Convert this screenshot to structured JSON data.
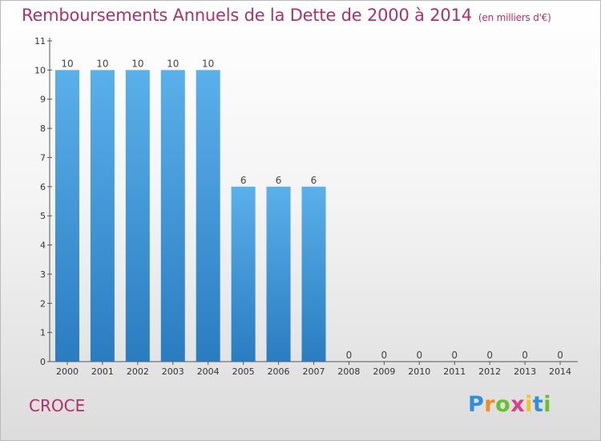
{
  "title": "Remboursements Annuels de la Dette de 2000 à 2014",
  "unit": "(en milliers d'€)",
  "commune": "CROCE",
  "logo": {
    "letters": [
      "P",
      "r",
      "o",
      "x",
      "i",
      "t",
      "i"
    ],
    "colors": [
      "#2f8fd8",
      "#f28a1e",
      "#6cbf2c",
      "#e03c8c",
      "#f2c21e",
      "#2f8fd8",
      "#6cbf2c"
    ]
  },
  "colors": {
    "bar_top": "#5ab0ea",
    "bar_bottom": "#2a7cc0",
    "title": "#b0306a"
  },
  "chart_data": {
    "type": "bar",
    "categories": [
      "2000",
      "2001",
      "2002",
      "2003",
      "2004",
      "2005",
      "2006",
      "2007",
      "2008",
      "2009",
      "2010",
      "2011",
      "2012",
      "2013",
      "2014"
    ],
    "values": [
      10,
      10,
      10,
      10,
      10,
      6,
      6,
      6,
      0,
      0,
      0,
      0,
      0,
      0,
      0
    ],
    "ylim": [
      0,
      11
    ],
    "yticks": [
      0,
      1,
      2,
      3,
      4,
      5,
      6,
      7,
      8,
      9,
      10,
      11
    ],
    "grid": false,
    "legend": "none"
  }
}
